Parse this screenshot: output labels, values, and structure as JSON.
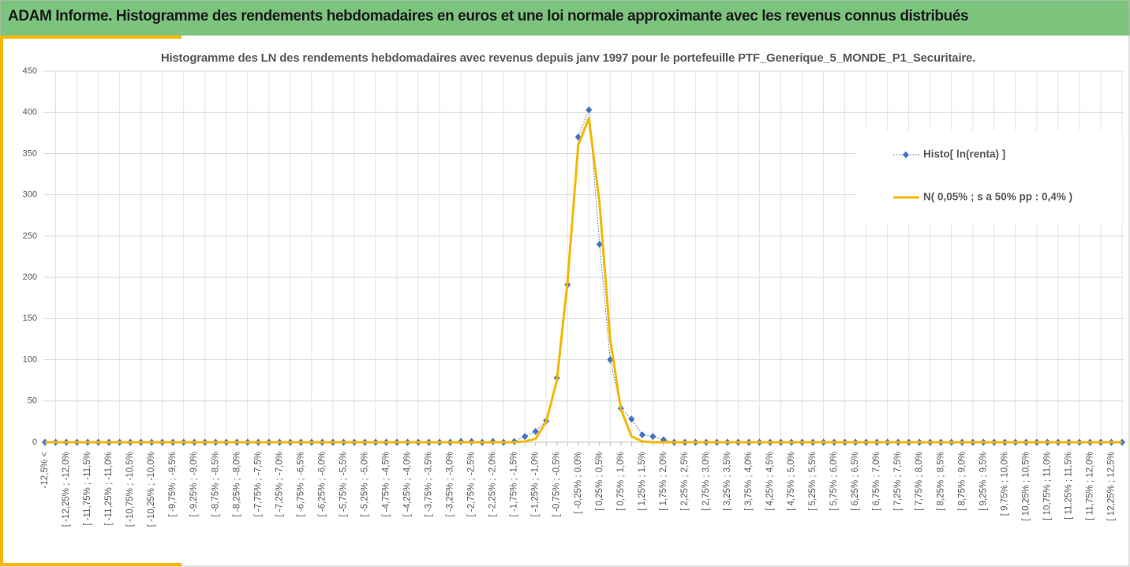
{
  "header": {
    "title": "ADAM Informe. Histogramme des rendements hebdomadaires en euros et une loi normale approximante avec les revenus connus distribués"
  },
  "chart_data": {
    "type": "line",
    "title": "Histogramme des LN des rendements hebdomadaires avec revenus depuis janv 1997 pour le portefeuille PTF_Generique_5_MONDE_P1_Securitaire.",
    "categories": [
      "-12,5% <",
      null,
      "[ -12,25% ; -12,0%",
      null,
      "[ -11,75% ; -11,5%",
      null,
      "[ -11,25% ; -11,0%",
      null,
      "[ -10,75% ; -10,5%",
      null,
      "[ -10,25% ; -10,0%",
      null,
      "[ -9,75% ; -9,5%",
      null,
      "[ -9,25% ; -9,0%",
      null,
      "[ -8,75% ; -8,5%",
      null,
      "[ -8,25% ; -8,0%",
      null,
      "[ -7,75% ; -7,5%",
      null,
      "[ -7,25% ; -7,0%",
      null,
      "[ -6,75% ; -6,5%",
      null,
      "[ -6,25% ; -6,0%",
      null,
      "[ -5,75% ; -5,5%",
      null,
      "[ -5,25% ; -5,0%",
      null,
      "[ -4,75% ; -4,5%",
      null,
      "[ -4,25% ; -4,0%",
      null,
      "[ -3,75% ; -3,5%",
      null,
      "[ -3,25% ; -3,0%",
      null,
      "[ -2,75% ; -2,5%",
      null,
      "[ -2,25% ; -2,0%",
      null,
      "[ -1,75% ; -1,5%",
      null,
      "[ -1,25% ; -1,0%",
      null,
      "[ -0,75% ; -0,5%",
      null,
      "[ -0,25% ; 0,0%",
      null,
      "[ 0,25% ; 0,5%",
      null,
      "[ 0,75% ; 1,0%",
      null,
      "[ 1,25% ; 1,5%",
      null,
      "[ 1,75% ; 2,0%",
      null,
      "[ 2,25% ; 2,5%",
      null,
      "[ 2,75% ; 3,0%",
      null,
      "[ 3,25% ; 3,5%",
      null,
      "[ 3,75% ; 4,0%",
      null,
      "[ 4,25% ; 4,5%",
      null,
      "[ 4,75% ; 5,0%",
      null,
      "[ 5,25% ; 5,5%",
      null,
      "[ 5,75% ; 6,0%",
      null,
      "[ 6,25% ; 6,5%",
      null,
      "[ 6,75% ; 7,0%",
      null,
      "[ 7,25% ; 7,5%",
      null,
      "[ 7,75% ; 8,0%",
      null,
      "[ 8,25% ; 8,5%",
      null,
      "[ 8,75% ; 9,0%",
      null,
      "[ 9,25% ; 9,5%",
      null,
      "[ 9,75% ; 10,0%",
      null,
      "[ 10,25% ; 10,5%",
      null,
      "[ 10,75% ; 11,0%",
      null,
      "[ 11,25% ; 11,5%",
      null,
      "[ 11,75% ; 12,0%",
      null,
      "[ 12,25% ; 12,5%",
      null
    ],
    "series": [
      {
        "name": "Histo[ ln(renta) ]",
        "color": "#4472c4",
        "values": [
          0,
          0,
          0,
          0,
          0,
          0,
          0,
          0,
          0,
          0,
          0,
          0,
          0,
          0,
          0,
          0,
          0,
          0,
          0,
          0,
          0,
          0,
          0,
          0,
          0,
          0,
          0,
          0,
          0,
          0,
          0,
          0,
          0,
          0,
          0,
          0,
          0,
          0,
          0,
          1,
          1,
          0,
          1,
          0,
          1,
          7,
          13,
          26,
          78,
          191,
          370,
          403,
          240,
          100,
          41,
          28,
          9,
          7,
          3,
          0,
          0,
          0,
          0,
          0,
          0,
          0,
          0,
          0,
          0,
          0,
          0,
          0,
          0,
          0,
          0,
          0,
          0,
          0,
          0,
          0,
          0,
          0,
          0,
          0,
          0,
          0,
          0,
          0,
          0,
          0,
          0,
          0,
          0,
          0,
          0,
          0,
          0,
          0,
          0,
          0,
          0,
          0
        ]
      },
      {
        "name": "N( 0,05% ; s a 50% pp : 0,4% )",
        "color": "#f5b800",
        "values": [
          0,
          0,
          0,
          0,
          0,
          0,
          0,
          0,
          0,
          0,
          0,
          0,
          0,
          0,
          0,
          0,
          0,
          0,
          0,
          0,
          0,
          0,
          0,
          0,
          0,
          0,
          0,
          0,
          0,
          0,
          0,
          0,
          0,
          0,
          0,
          0,
          0,
          0,
          0,
          0,
          0,
          0,
          0,
          0,
          0,
          1,
          4,
          25,
          75,
          195,
          360,
          393,
          290,
          125,
          40,
          7,
          1,
          0,
          0,
          0,
          0,
          0,
          0,
          0,
          0,
          0,
          0,
          0,
          0,
          0,
          0,
          0,
          0,
          0,
          0,
          0,
          0,
          0,
          0,
          0,
          0,
          0,
          0,
          0,
          0,
          0,
          0,
          0,
          0,
          0,
          0,
          0,
          0,
          0,
          0,
          0,
          0,
          0,
          0,
          0,
          0,
          0
        ]
      }
    ],
    "ylim": [
      0,
      450
    ],
    "yticks": [
      0,
      50,
      100,
      150,
      200,
      250,
      300,
      350,
      400,
      450
    ],
    "grid": true,
    "legend_position": "right"
  }
}
